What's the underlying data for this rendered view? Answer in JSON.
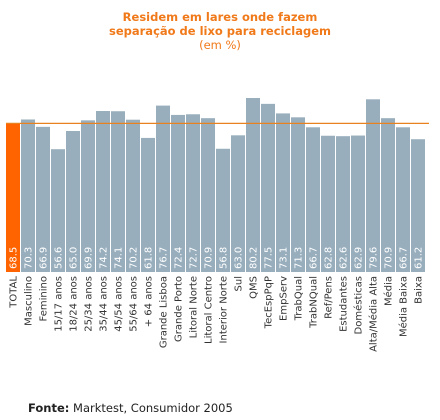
{
  "chart_data": {
    "type": "bar",
    "title": "Residem em lares onde fazem",
    "title_line2": "separação de lixo para reciclagem",
    "subtitle": "(em %)",
    "categories": [
      "TOTAL",
      "Masculino",
      "Feminino",
      "15/17 anos",
      "18/24 anos",
      "25/34 anos",
      "35/44 anos",
      "45/54 anos",
      "55/64 anos",
      "+ 64 anos",
      "Grande Lisboa",
      "Grande Porto",
      "Litoral Norte",
      "Litoral Centro",
      "Interior Norte",
      "Sul",
      "QMS",
      "TecEspPqP",
      "EmpServ",
      "TrabQual",
      "TrabNQual",
      "Ref/Pens",
      "Estudantes",
      "Domésticas",
      "Alta/Média Alta",
      "Média",
      "Média Baixa",
      "Baixa"
    ],
    "values": [
      68.5,
      70.3,
      66.9,
      56.6,
      65.0,
      69.9,
      74.2,
      74.1,
      70.2,
      61.8,
      76.7,
      72.4,
      72.7,
      70.9,
      56.8,
      63.0,
      80.2,
      77.5,
      73.1,
      71.3,
      66.7,
      62.8,
      62.6,
      62.9,
      79.6,
      70.9,
      66.7,
      61.2
    ],
    "value_labels": [
      "68.5",
      "70.3",
      "66.9",
      "56.6",
      "65.0",
      "69.9",
      "74.2",
      "74.1",
      "70.2",
      "61.8",
      "76.7",
      "72.4",
      "72.7",
      "70.9",
      "56.8",
      "63.0",
      "80.2",
      "77.5",
      "73.1",
      "71.3",
      "66.7",
      "62.8",
      "62.6",
      "62.9",
      "79.6",
      "70.9",
      "66.7",
      "61.2"
    ],
    "highlight_index": 0,
    "reference_value": 68.5,
    "colors": {
      "bar": "#98aebd",
      "highlight": "#ff6400",
      "reference_line": "#e8821e",
      "title": "#f07a1a",
      "value_label": "#ffffff"
    }
  },
  "footer": {
    "source_label": "Fonte:",
    "source_text": "Marktest, Consumidor 2005"
  }
}
